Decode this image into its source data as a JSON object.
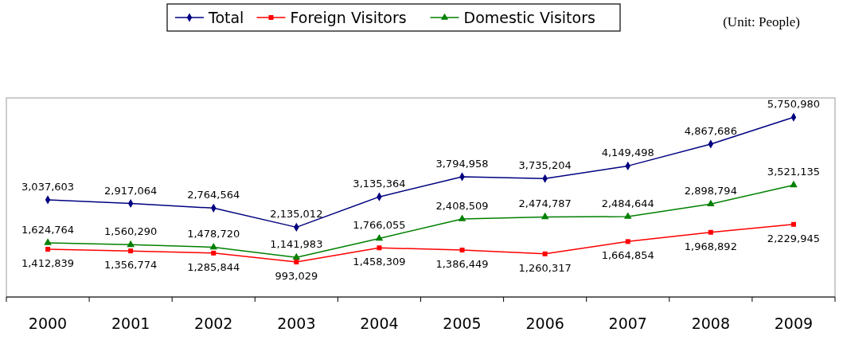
{
  "chart_data": {
    "type": "line",
    "categories": [
      "2000",
      "2001",
      "2002",
      "2003",
      "2004",
      "2005",
      "2006",
      "2007",
      "2008",
      "2009"
    ],
    "series": [
      {
        "name": "Total",
        "color": "#000080",
        "marker": "diamond",
        "values": [
          3037603,
          2917064,
          2764564,
          2135012,
          3135364,
          3794958,
          3735204,
          4149498,
          4867686,
          5750980
        ],
        "value_labels": [
          "3,037,603",
          "2,917,064",
          "2,764,564",
          "2,135,012",
          "3,135,364",
          "3,794,958",
          "3,735,204",
          "4,149,498",
          "4,867,686",
          "5,750,980"
        ]
      },
      {
        "name": "Foreign Visitors",
        "color": "#ff0000",
        "marker": "square",
        "values": [
          1412839,
          1356774,
          1285844,
          993029,
          1458309,
          1386449,
          1260317,
          1664854,
          1968892,
          2229945
        ],
        "value_labels": [
          "1,412,839",
          "1,356,774",
          "1,285,844",
          "993,029",
          "1,458,309",
          "1,386,449",
          "1,260,317",
          "1,664,854",
          "1,968,892",
          "2,229,945"
        ]
      },
      {
        "name": "Domestic Visitors",
        "color": "#008000",
        "marker": "triangle",
        "values": [
          1624764,
          1560290,
          1478720,
          1141983,
          1766055,
          2408509,
          2474787,
          2484644,
          2898794,
          3521135
        ],
        "value_labels": [
          "1,624,764",
          "1,560,290",
          "1,478,720",
          "1,141,983",
          "1,766,055",
          "2,408,509",
          "2,474,787",
          "2,484,644",
          "2,898,794",
          "3,521,135"
        ]
      }
    ],
    "legend": "top",
    "tick_labels": "x",
    "annotations": [
      "(Unit: People)"
    ]
  }
}
